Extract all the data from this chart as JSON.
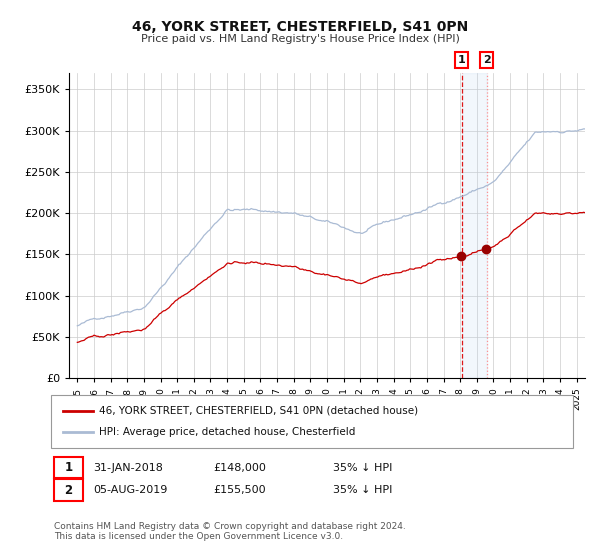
{
  "title": "46, YORK STREET, CHESTERFIELD, S41 0PN",
  "subtitle": "Price paid vs. HM Land Registry's House Price Index (HPI)",
  "background_color": "#ffffff",
  "plot_bg_color": "#ffffff",
  "grid_color": "#cccccc",
  "hpi_color": "#aabbd4",
  "price_color": "#cc0000",
  "annotation_bg": "#ddeeff",
  "purchase1_date": 2018.083,
  "purchase1_price": 148000,
  "purchase2_date": 2019.583,
  "purchase2_price": 155500,
  "legend_label_price": "46, YORK STREET, CHESTERFIELD, S41 0PN (detached house)",
  "legend_label_hpi": "HPI: Average price, detached house, Chesterfield",
  "footnote1": "Contains HM Land Registry data © Crown copyright and database right 2024.",
  "footnote2": "This data is licensed under the Open Government Licence v3.0.",
  "table": [
    [
      "1",
      "31-JAN-2018",
      "£148,000",
      "35% ↓ HPI"
    ],
    [
      "2",
      "05-AUG-2019",
      "£155,500",
      "35% ↓ HPI"
    ]
  ],
  "ylim": [
    0,
    370000
  ],
  "yticks": [
    0,
    50000,
    100000,
    150000,
    200000,
    250000,
    300000,
    350000
  ],
  "xmin": 1994.5,
  "xmax": 2025.5,
  "seed": 42
}
